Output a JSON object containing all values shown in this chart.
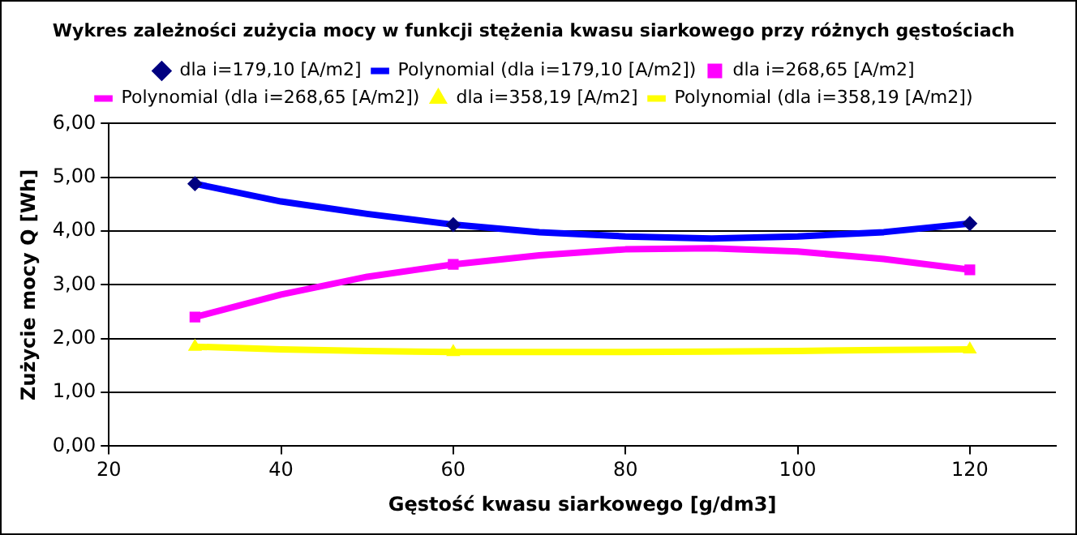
{
  "chart_data": {
    "type": "line",
    "title": "Wykres zależności zużycia mocy w funkcji stężenia kwasu siarkowego przy różnych gęstościach",
    "xlabel": "Gęstość kwasu siarkowego [g/dm3]",
    "ylabel": "Zużycie mocy Q [Wh]",
    "xlim": [
      20,
      130
    ],
    "xticks": [
      20,
      40,
      60,
      80,
      100,
      120
    ],
    "ylim": [
      0,
      6
    ],
    "yticks": [
      {
        "value": 0,
        "label": "0,00"
      },
      {
        "value": 1,
        "label": "1,00"
      },
      {
        "value": 2,
        "label": "2,00"
      },
      {
        "value": 3,
        "label": "3,00"
      },
      {
        "value": 4,
        "label": "4,00"
      },
      {
        "value": 5,
        "label": "5,00"
      },
      {
        "value": 6,
        "label": "6,00"
      }
    ],
    "grid": "y",
    "legend": "top",
    "series": [
      {
        "name": "dla i=179,10 [A/m2]",
        "type": "scatter",
        "color": "#000080",
        "marker": "diamond",
        "x": [
          30,
          60,
          120
        ],
        "values": [
          4.88,
          4.12,
          4.14
        ]
      },
      {
        "name": "Polynomial (dla i=179,10 [A/m2])",
        "color": "#0000ff",
        "marker": "none",
        "x": [
          30,
          40,
          50,
          60,
          70,
          80,
          90,
          100,
          110,
          120
        ],
        "values": [
          4.88,
          4.55,
          4.32,
          4.12,
          3.98,
          3.9,
          3.86,
          3.9,
          3.98,
          4.14
        ]
      },
      {
        "name": "dla i=268,65 [A/m2]",
        "type": "scatter",
        "color": "#ff00ff",
        "marker": "square",
        "x": [
          30,
          60,
          120
        ],
        "values": [
          2.4,
          3.38,
          3.28
        ]
      },
      {
        "name": "Polynomial (dla i=268,65 [A/m2])",
        "color": "#ff00ff",
        "marker": "none",
        "x": [
          30,
          40,
          50,
          60,
          70,
          80,
          90,
          100,
          110,
          120
        ],
        "values": [
          2.4,
          2.82,
          3.15,
          3.38,
          3.55,
          3.66,
          3.68,
          3.62,
          3.48,
          3.28
        ]
      },
      {
        "name": "dla i=358,19 [A/m2]",
        "type": "scatter",
        "color": "#ffff00",
        "marker": "triangle",
        "x": [
          30,
          60,
          120
        ],
        "values": [
          1.85,
          1.75,
          1.8
        ]
      },
      {
        "name": "Polynomial (dla i=358,19 [A/m2])",
        "color": "#ffff00",
        "marker": "none",
        "x": [
          30,
          40,
          50,
          60,
          70,
          80,
          90,
          100,
          110,
          120
        ],
        "values": [
          1.85,
          1.8,
          1.77,
          1.75,
          1.75,
          1.75,
          1.76,
          1.77,
          1.79,
          1.8
        ]
      }
    ]
  }
}
